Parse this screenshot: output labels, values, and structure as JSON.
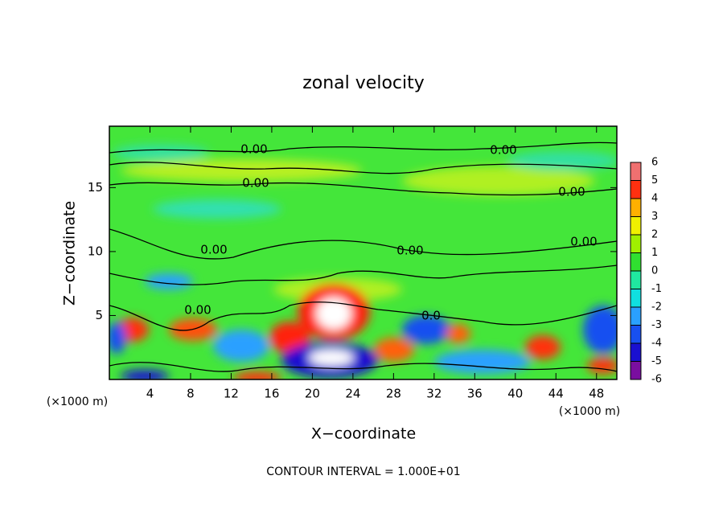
{
  "chart_data": {
    "type": "contour",
    "title": "zonal velocity",
    "xlabel": "X−coordinate",
    "ylabel": "Z−coordinate",
    "x_scale_label": "(×1000 m)",
    "y_scale_label": "(×1000 m)",
    "footnote": "CONTOUR INTERVAL = 1.000E+01",
    "xlim": [
      0,
      50
    ],
    "ylim": [
      0,
      19.8
    ],
    "xticks": [
      4,
      8,
      12,
      16,
      20,
      24,
      28,
      32,
      36,
      40,
      44,
      48
    ],
    "yticks": [
      5,
      10,
      15
    ],
    "contour_labels": [
      "0.00",
      "0.00",
      "0.00",
      "0.00",
      "0.00",
      "0.00",
      "0.00",
      "0.00",
      "0.0"
    ],
    "colorbar": {
      "levels": [
        -6,
        -5,
        -4,
        -3,
        -2,
        -1,
        0,
        1,
        2,
        3,
        4,
        5,
        6
      ],
      "colors": [
        "#7a0ea0",
        "#1a10d0",
        "#1850f0",
        "#2aa0ff",
        "#10e0e0",
        "#20e8a0",
        "#30e030",
        "#a0f000",
        "#f0f000",
        "#ffb000",
        "#ff3010",
        "#f07070"
      ]
    }
  }
}
